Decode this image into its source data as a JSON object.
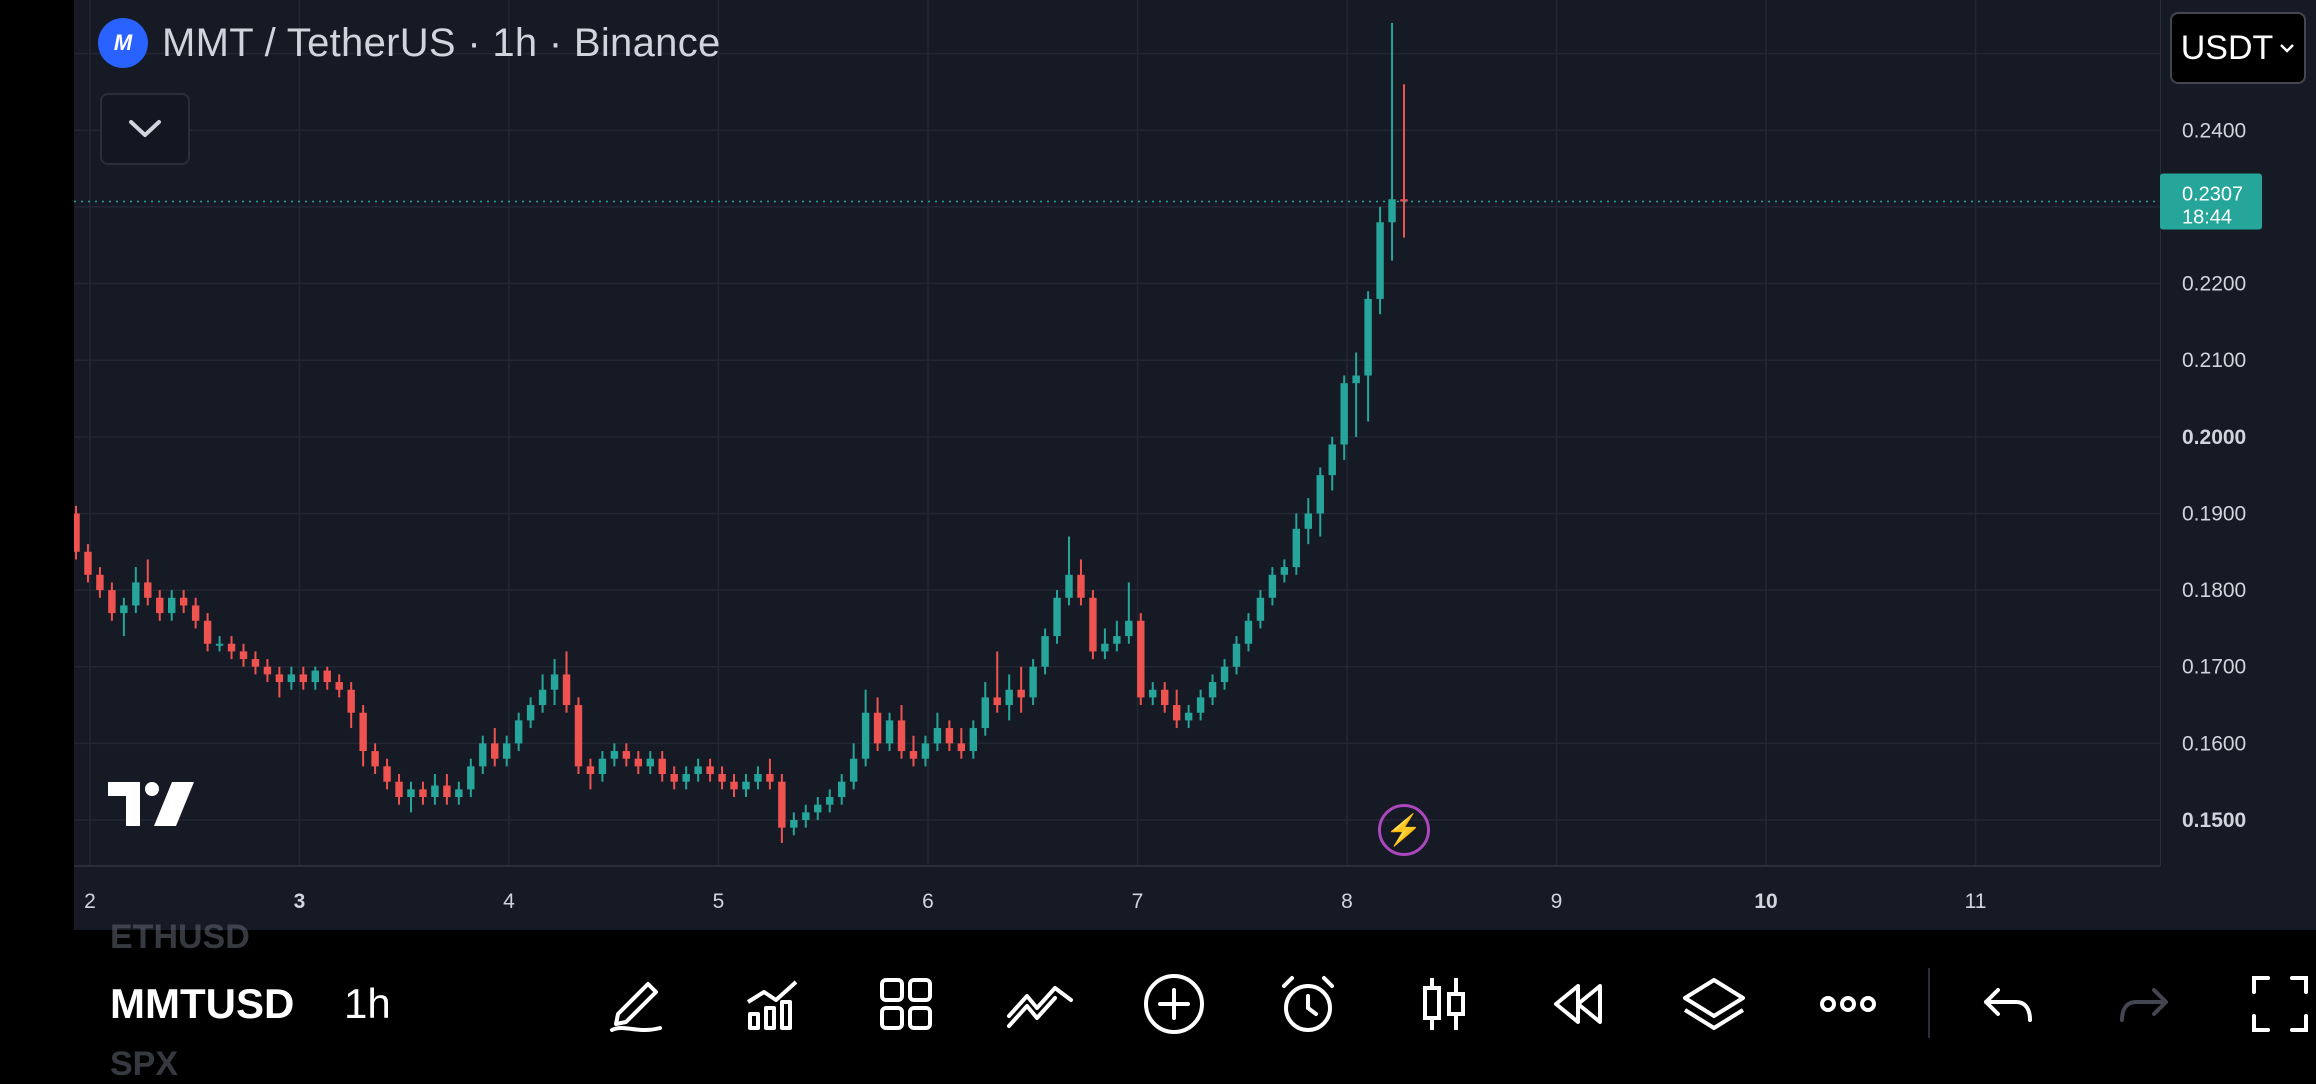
{
  "header": {
    "title": "MMT / TetherUS · 1h · Binance",
    "currency": "USDT"
  },
  "price_axis": {
    "labels": [
      "0.2400",
      "0.2200",
      "0.2100",
      "0.2000",
      "0.1900",
      "0.1800",
      "0.1700",
      "0.1600",
      "0.1500"
    ],
    "current_price": "0.2307",
    "countdown": "18:44"
  },
  "time_axis": {
    "labels": [
      "2",
      "3",
      "4",
      "5",
      "6",
      "7",
      "8",
      "9",
      "10",
      "11"
    ]
  },
  "symbols": {
    "previous": "ETHUSD",
    "current": "MMTUSD",
    "next": "SPX",
    "interval": "1h"
  },
  "colors": {
    "up": "#26a69a",
    "down": "#ef5350",
    "background": "#161a25",
    "grid": "#232734",
    "accent": "#2962ff"
  },
  "icons": [
    "drawing-pencil-icon",
    "indicators-icon",
    "layouts-icon",
    "patterns-icon",
    "add-icon",
    "alert-icon",
    "chart-type-icon",
    "replay-icon",
    "layers-icon",
    "more-icon",
    "undo-icon",
    "redo-icon",
    "fullscreen-icon"
  ],
  "chart_data": {
    "type": "candlestick",
    "x_unit": "day of month (hourly candles)",
    "ylim": [
      0.144,
      0.257
    ],
    "candles": [
      [
        0.19,
        0.191,
        0.184,
        0.185
      ],
      [
        0.185,
        0.186,
        0.181,
        0.182
      ],
      [
        0.182,
        0.183,
        0.179,
        0.18
      ],
      [
        0.18,
        0.181,
        0.176,
        0.177
      ],
      [
        0.177,
        0.179,
        0.174,
        0.178
      ],
      [
        0.178,
        0.183,
        0.177,
        0.181
      ],
      [
        0.181,
        0.184,
        0.178,
        0.179
      ],
      [
        0.179,
        0.18,
        0.176,
        0.177
      ],
      [
        0.177,
        0.18,
        0.176,
        0.179
      ],
      [
        0.179,
        0.18,
        0.177,
        0.178
      ],
      [
        0.178,
        0.179,
        0.175,
        0.176
      ],
      [
        0.176,
        0.177,
        0.172,
        0.173
      ],
      [
        0.173,
        0.174,
        0.172,
        0.173
      ],
      [
        0.173,
        0.174,
        0.171,
        0.172
      ],
      [
        0.172,
        0.173,
        0.17,
        0.171
      ],
      [
        0.171,
        0.172,
        0.169,
        0.17
      ],
      [
        0.17,
        0.171,
        0.168,
        0.169
      ],
      [
        0.169,
        0.17,
        0.166,
        0.168
      ],
      [
        0.168,
        0.17,
        0.167,
        0.169
      ],
      [
        0.169,
        0.17,
        0.167,
        0.168
      ],
      [
        0.168,
        0.17,
        0.167,
        0.1695
      ],
      [
        0.1695,
        0.17,
        0.167,
        0.168
      ],
      [
        0.168,
        0.169,
        0.166,
        0.167
      ],
      [
        0.167,
        0.168,
        0.162,
        0.164
      ],
      [
        0.164,
        0.165,
        0.157,
        0.159
      ],
      [
        0.159,
        0.16,
        0.156,
        0.157
      ],
      [
        0.157,
        0.158,
        0.154,
        0.155
      ],
      [
        0.155,
        0.156,
        0.152,
        0.153
      ],
      [
        0.153,
        0.155,
        0.151,
        0.154
      ],
      [
        0.154,
        0.155,
        0.152,
        0.153
      ],
      [
        0.153,
        0.156,
        0.152,
        0.1545
      ],
      [
        0.1545,
        0.156,
        0.152,
        0.153
      ],
      [
        0.153,
        0.155,
        0.152,
        0.154
      ],
      [
        0.154,
        0.158,
        0.153,
        0.157
      ],
      [
        0.157,
        0.161,
        0.156,
        0.16
      ],
      [
        0.16,
        0.162,
        0.157,
        0.158
      ],
      [
        0.158,
        0.161,
        0.157,
        0.16
      ],
      [
        0.16,
        0.164,
        0.159,
        0.163
      ],
      [
        0.163,
        0.166,
        0.162,
        0.165
      ],
      [
        0.165,
        0.169,
        0.164,
        0.167
      ],
      [
        0.167,
        0.171,
        0.165,
        0.169
      ],
      [
        0.169,
        0.172,
        0.164,
        0.165
      ],
      [
        0.165,
        0.166,
        0.156,
        0.157
      ],
      [
        0.157,
        0.158,
        0.154,
        0.156
      ],
      [
        0.156,
        0.159,
        0.155,
        0.158
      ],
      [
        0.158,
        0.16,
        0.157,
        0.159
      ],
      [
        0.159,
        0.16,
        0.157,
        0.158
      ],
      [
        0.158,
        0.159,
        0.156,
        0.157
      ],
      [
        0.157,
        0.159,
        0.156,
        0.158
      ],
      [
        0.158,
        0.159,
        0.155,
        0.156
      ],
      [
        0.156,
        0.157,
        0.154,
        0.155
      ],
      [
        0.155,
        0.157,
        0.154,
        0.156
      ],
      [
        0.156,
        0.158,
        0.155,
        0.157
      ],
      [
        0.157,
        0.158,
        0.155,
        0.156
      ],
      [
        0.156,
        0.157,
        0.154,
        0.155
      ],
      [
        0.155,
        0.156,
        0.153,
        0.154
      ],
      [
        0.154,
        0.156,
        0.153,
        0.155
      ],
      [
        0.155,
        0.157,
        0.154,
        0.156
      ],
      [
        0.156,
        0.158,
        0.154,
        0.155
      ],
      [
        0.155,
        0.156,
        0.147,
        0.149
      ],
      [
        0.149,
        0.151,
        0.148,
        0.15
      ],
      [
        0.15,
        0.152,
        0.149,
        0.151
      ],
      [
        0.151,
        0.153,
        0.15,
        0.152
      ],
      [
        0.152,
        0.154,
        0.151,
        0.153
      ],
      [
        0.153,
        0.156,
        0.152,
        0.155
      ],
      [
        0.155,
        0.16,
        0.154,
        0.158
      ],
      [
        0.158,
        0.167,
        0.157,
        0.164
      ],
      [
        0.164,
        0.166,
        0.159,
        0.16
      ],
      [
        0.16,
        0.164,
        0.159,
        0.163
      ],
      [
        0.163,
        0.165,
        0.158,
        0.159
      ],
      [
        0.159,
        0.161,
        0.157,
        0.158
      ],
      [
        0.158,
        0.161,
        0.157,
        0.16
      ],
      [
        0.16,
        0.164,
        0.159,
        0.162
      ],
      [
        0.162,
        0.163,
        0.159,
        0.16
      ],
      [
        0.16,
        0.162,
        0.158,
        0.159
      ],
      [
        0.159,
        0.163,
        0.158,
        0.162
      ],
      [
        0.162,
        0.168,
        0.161,
        0.166
      ],
      [
        0.166,
        0.172,
        0.164,
        0.165
      ],
      [
        0.165,
        0.169,
        0.163,
        0.167
      ],
      [
        0.167,
        0.17,
        0.164,
        0.166
      ],
      [
        0.166,
        0.171,
        0.165,
        0.17
      ],
      [
        0.17,
        0.175,
        0.169,
        0.174
      ],
      [
        0.174,
        0.18,
        0.173,
        0.179
      ],
      [
        0.179,
        0.187,
        0.178,
        0.182
      ],
      [
        0.182,
        0.184,
        0.178,
        0.179
      ],
      [
        0.179,
        0.18,
        0.171,
        0.172
      ],
      [
        0.172,
        0.175,
        0.171,
        0.173
      ],
      [
        0.173,
        0.176,
        0.172,
        0.174
      ],
      [
        0.174,
        0.181,
        0.173,
        0.176
      ],
      [
        0.176,
        0.177,
        0.165,
        0.166
      ],
      [
        0.166,
        0.168,
        0.165,
        0.167
      ],
      [
        0.167,
        0.168,
        0.164,
        0.165
      ],
      [
        0.165,
        0.167,
        0.162,
        0.163
      ],
      [
        0.163,
        0.165,
        0.162,
        0.164
      ],
      [
        0.164,
        0.167,
        0.163,
        0.166
      ],
      [
        0.166,
        0.169,
        0.165,
        0.168
      ],
      [
        0.168,
        0.171,
        0.167,
        0.17
      ],
      [
        0.17,
        0.174,
        0.169,
        0.173
      ],
      [
        0.173,
        0.177,
        0.172,
        0.176
      ],
      [
        0.176,
        0.18,
        0.175,
        0.179
      ],
      [
        0.179,
        0.183,
        0.178,
        0.182
      ],
      [
        0.182,
        0.184,
        0.181,
        0.183
      ],
      [
        0.183,
        0.19,
        0.182,
        0.188
      ],
      [
        0.188,
        0.192,
        0.186,
        0.19
      ],
      [
        0.19,
        0.196,
        0.187,
        0.195
      ],
      [
        0.195,
        0.2,
        0.193,
        0.199
      ],
      [
        0.199,
        0.208,
        0.197,
        0.207
      ],
      [
        0.207,
        0.211,
        0.2,
        0.208
      ],
      [
        0.208,
        0.219,
        0.202,
        0.218
      ],
      [
        0.218,
        0.23,
        0.216,
        0.228
      ],
      [
        0.228,
        0.254,
        0.223,
        0.231
      ],
      [
        0.231,
        0.246,
        0.226,
        0.2307
      ]
    ]
  }
}
